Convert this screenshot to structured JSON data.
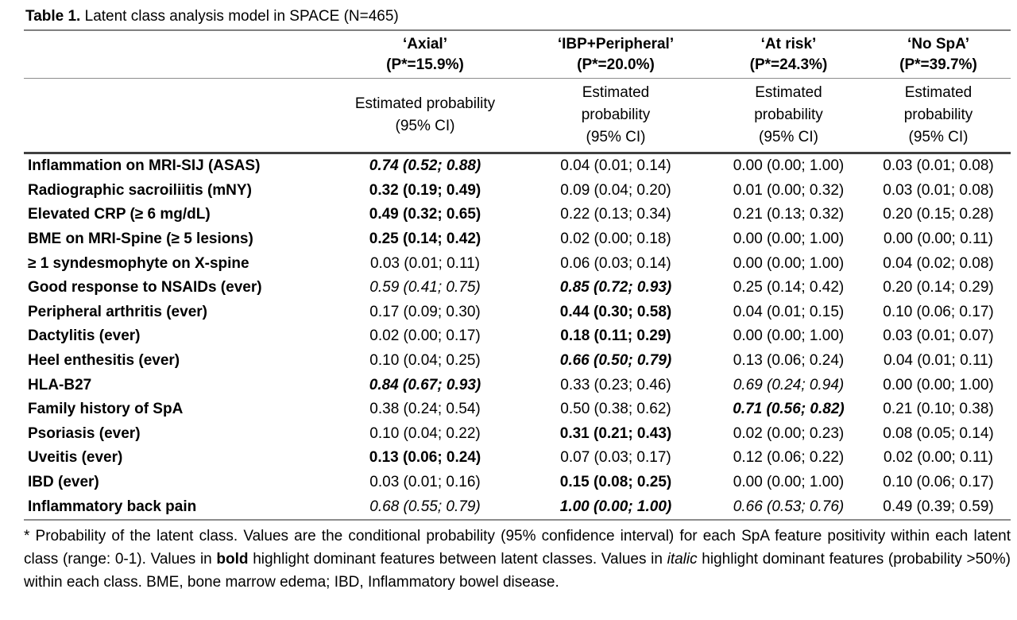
{
  "title": {
    "label": "Table 1.",
    "text": " Latent class analysis model in SPACE (N=465)"
  },
  "columns": [
    {
      "header": "‘Axial’\n(P*=15.9%)",
      "subheader": "Estimated probability\n(95% CI)"
    },
    {
      "header": "‘IBP+Peripheral’\n(P*=20.0%)",
      "subheader": "Estimated\nprobability\n(95% CI)"
    },
    {
      "header": "‘At risk’\n(P*=24.3%)",
      "subheader": "Estimated\nprobability\n(95% CI)"
    },
    {
      "header": "‘No SpA’\n(P*=39.7%)",
      "subheader": "Estimated\nprobability\n(95% CI)"
    }
  ],
  "rows": [
    {
      "label": "Inflammation on MRI-SIJ (ASAS)",
      "values": [
        {
          "text": "0.74 (0.52; 0.88)",
          "style": "bold-italic"
        },
        {
          "text": "0.04 (0.01; 0.14)",
          "style": "regular"
        },
        {
          "text": "0.00 (0.00; 1.00)",
          "style": "regular"
        },
        {
          "text": "0.03 (0.01; 0.08)",
          "style": "regular"
        }
      ]
    },
    {
      "label": "Radiographic sacroiliitis (mNY)",
      "values": [
        {
          "text": "0.32 (0.19; 0.49)",
          "style": "bold"
        },
        {
          "text": "0.09 (0.04; 0.20)",
          "style": "regular"
        },
        {
          "text": "0.01 (0.00; 0.32)",
          "style": "regular"
        },
        {
          "text": "0.03 (0.01; 0.08)",
          "style": "regular"
        }
      ]
    },
    {
      "label": "Elevated CRP (≥ 6 mg/dL)",
      "values": [
        {
          "text": "0.49 (0.32; 0.65)",
          "style": "bold"
        },
        {
          "text": "0.22 (0.13; 0.34)",
          "style": "regular"
        },
        {
          "text": "0.21 (0.13; 0.32)",
          "style": "regular"
        },
        {
          "text": "0.20 (0.15; 0.28)",
          "style": "regular"
        }
      ]
    },
    {
      "label": "BME on MRI-Spine (≥ 5 lesions)",
      "values": [
        {
          "text": "0.25 (0.14; 0.42)",
          "style": "bold"
        },
        {
          "text": "0.02 (0.00; 0.18)",
          "style": "regular"
        },
        {
          "text": "0.00 (0.00; 1.00)",
          "style": "regular"
        },
        {
          "text": "0.00 (0.00; 0.11)",
          "style": "regular"
        }
      ]
    },
    {
      "label": "≥ 1 syndesmophyte on X-spine",
      "values": [
        {
          "text": "0.03 (0.01; 0.11)",
          "style": "regular"
        },
        {
          "text": "0.06 (0.03; 0.14)",
          "style": "regular"
        },
        {
          "text": "0.00 (0.00; 1.00)",
          "style": "regular"
        },
        {
          "text": "0.04 (0.02; 0.08)",
          "style": "regular"
        }
      ]
    },
    {
      "label": "Good response to NSAIDs (ever)",
      "values": [
        {
          "text": "0.59 (0.41; 0.75)",
          "style": "italic"
        },
        {
          "text": "0.85 (0.72; 0.93)",
          "style": "bold-italic"
        },
        {
          "text": "0.25 (0.14; 0.42)",
          "style": "regular"
        },
        {
          "text": "0.20 (0.14; 0.29)",
          "style": "regular"
        }
      ]
    },
    {
      "label": "Peripheral arthritis (ever)",
      "values": [
        {
          "text": "0.17 (0.09; 0.30)",
          "style": "regular"
        },
        {
          "text": "0.44 (0.30; 0.58)",
          "style": "bold"
        },
        {
          "text": "0.04 (0.01; 0.15)",
          "style": "regular"
        },
        {
          "text": "0.10 (0.06; 0.17)",
          "style": "regular"
        }
      ]
    },
    {
      "label": "Dactylitis (ever)",
      "values": [
        {
          "text": "0.02 (0.00; 0.17)",
          "style": "regular"
        },
        {
          "text": "0.18 (0.11; 0.29)",
          "style": "bold"
        },
        {
          "text": "0.00 (0.00; 1.00)",
          "style": "regular"
        },
        {
          "text": "0.03 (0.01; 0.07)",
          "style": "regular"
        }
      ]
    },
    {
      "label": "Heel enthesitis (ever)",
      "values": [
        {
          "text": "0.10 (0.04; 0.25)",
          "style": "regular"
        },
        {
          "text": "0.66 (0.50; 0.79)",
          "style": "bold-italic"
        },
        {
          "text": "0.13 (0.06; 0.24)",
          "style": "regular"
        },
        {
          "text": "0.04 (0.01; 0.11)",
          "style": "regular"
        }
      ]
    },
    {
      "label": "HLA-B27",
      "values": [
        {
          "text": "0.84 (0.67; 0.93)",
          "style": "bold-italic"
        },
        {
          "text": "0.33 (0.23; 0.46)",
          "style": "regular"
        },
        {
          "text": "0.69 (0.24; 0.94)",
          "style": "italic"
        },
        {
          "text": "0.00 (0.00; 1.00)",
          "style": "regular"
        }
      ]
    },
    {
      "label": "Family history of SpA",
      "values": [
        {
          "text": "0.38 (0.24; 0.54)",
          "style": "regular"
        },
        {
          "text": "0.50 (0.38; 0.62)",
          "style": "regular"
        },
        {
          "text": "0.71 (0.56; 0.82)",
          "style": "bold-italic"
        },
        {
          "text": "0.21 (0.10; 0.38)",
          "style": "regular"
        }
      ]
    },
    {
      "label": "Psoriasis (ever)",
      "values": [
        {
          "text": "0.10 (0.04; 0.22)",
          "style": "regular"
        },
        {
          "text": "0.31 (0.21; 0.43)",
          "style": "bold"
        },
        {
          "text": "0.02 (0.00; 0.23)",
          "style": "regular"
        },
        {
          "text": "0.08 (0.05; 0.14)",
          "style": "regular"
        }
      ]
    },
    {
      "label": "Uveitis (ever)",
      "values": [
        {
          "text": "0.13 (0.06; 0.24)",
          "style": "bold"
        },
        {
          "text": "0.07 (0.03; 0.17)",
          "style": "regular"
        },
        {
          "text": "0.12 (0.06; 0.22)",
          "style": "regular"
        },
        {
          "text": "0.02 (0.00; 0.11)",
          "style": "regular"
        }
      ]
    },
    {
      "label": "IBD (ever)",
      "values": [
        {
          "text": "0.03 (0.01; 0.16)",
          "style": "regular"
        },
        {
          "text": "0.15 (0.08; 0.25)",
          "style": "bold"
        },
        {
          "text": "0.00 (0.00; 1.00)",
          "style": "regular"
        },
        {
          "text": "0.10 (0.06; 0.17)",
          "style": "regular"
        }
      ]
    },
    {
      "label": "Inflammatory back pain",
      "values": [
        {
          "text": "0.68 (0.55; 0.79)",
          "style": "italic"
        },
        {
          "text": "1.00 (0.00; 1.00)",
          "style": "bold-italic"
        },
        {
          "text": "0.66 (0.53; 0.76)",
          "style": "italic"
        },
        {
          "text": "0.49 (0.39; 0.59)",
          "style": "regular"
        }
      ]
    }
  ],
  "footnote": {
    "segments": [
      {
        "text": "* Probability of the latent class. Values are the conditional probability (95% confidence interval) for each SpA feature positivity within each latent class (range: 0-1). Values in ",
        "style": "regular"
      },
      {
        "text": "bold",
        "style": "bold"
      },
      {
        "text": " highlight dominant features between latent classes. Values in ",
        "style": "regular"
      },
      {
        "text": "italic",
        "style": "italic"
      },
      {
        "text": " highlight dominant features (probability >50%) within each class. BME, bone marrow edema; IBD, Inflammatory bowel disease.",
        "style": "regular"
      }
    ]
  }
}
